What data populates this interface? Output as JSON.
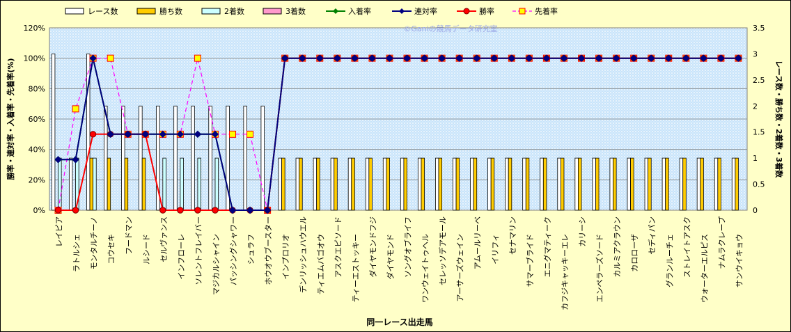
{
  "chart_data": {
    "type": "bar",
    "watermark": "©Ganiの競馬データ研究室",
    "xlabel": "同一レース出走馬",
    "ylabel_left": "勝率・連対率・入着率・先着率(%)",
    "ylabel_right": "レース数・勝ち数・2着数・3着数",
    "ylim_left": [
      0,
      120
    ],
    "ylim_right": [
      0,
      3.5
    ],
    "left_ticks": [
      "0%",
      "20%",
      "40%",
      "60%",
      "80%",
      "100%",
      "120%"
    ],
    "right_ticks": [
      "0",
      "0.5",
      "1",
      "1.5",
      "2",
      "2.5",
      "3",
      "3.5"
    ],
    "grid": true,
    "legend_position": "top",
    "categories": [
      "レイピア",
      "ラトルシェ",
      "モンタルチーノ",
      "コウセキ",
      "フードマン",
      "ルシード",
      "セルヴァンス",
      "インフローレ",
      "ソレントフレイバー",
      "マジカルシャイン",
      "パッシングシャワー",
      "シュラフ",
      "ホウオウブースター",
      "インプロリオ",
      "デンリッシュハウエル",
      "ティエムバゴオウ",
      "アスクエピソード",
      "ティーエストッキー",
      "ダイヤモンドフジ",
      "ダイヤモンド",
      "ソングオブライフ",
      "ワンウェイトゥヘル",
      "セレッソデアモール",
      "アーサーズウェイン",
      "アムールリーベ",
      "イリフィ",
      "セナマリン",
      "サマーブライド",
      "エニグマティーク",
      "カフジキャッキーエレ",
      "カリーシ",
      "エンペラーズソード",
      "カルミアクラウン",
      "カロローザ",
      "セディパン",
      "グランルーチェ",
      "ストレイトアスク",
      "ウォーターエルピス",
      "ナムラクレープ",
      "サンウイキョウ"
    ],
    "series": [
      {
        "name": "レース数",
        "kind": "bar",
        "axis": "right",
        "color": "#ffffff",
        "values": [
          3,
          1,
          3,
          2,
          2,
          2,
          2,
          2,
          2,
          2,
          2,
          2,
          2,
          1,
          1,
          1,
          1,
          1,
          1,
          1,
          1,
          1,
          1,
          1,
          1,
          1,
          1,
          1,
          1,
          1,
          1,
          1,
          1,
          1,
          1,
          1,
          1,
          1,
          1,
          1
        ]
      },
      {
        "name": "勝ち数",
        "kind": "bar",
        "axis": "right",
        "color": "#ffcc00",
        "values": [
          0,
          0,
          1,
          1,
          1,
          1,
          0,
          0,
          0,
          0,
          0,
          0,
          0,
          1,
          1,
          1,
          1,
          1,
          1,
          1,
          1,
          1,
          1,
          1,
          1,
          1,
          1,
          1,
          1,
          1,
          1,
          1,
          1,
          1,
          1,
          1,
          1,
          1,
          1,
          1
        ]
      },
      {
        "name": "2着数",
        "kind": "bar",
        "axis": "right",
        "color": "#ccffff",
        "values": [
          1,
          1,
          1,
          0,
          0,
          0,
          1,
          1,
          1,
          1,
          0,
          0,
          0,
          0,
          0,
          0,
          0,
          0,
          0,
          0,
          0,
          0,
          0,
          0,
          0,
          0,
          0,
          0,
          0,
          0,
          0,
          0,
          0,
          0,
          0,
          0,
          0,
          0,
          0,
          0
        ]
      },
      {
        "name": "3着数",
        "kind": "bar",
        "axis": "right",
        "color": "#ff99cc",
        "values": [
          0,
          0,
          0,
          0,
          0,
          0,
          0,
          0,
          0,
          0,
          0,
          0,
          0,
          0,
          0,
          0,
          0,
          0,
          0,
          0,
          0,
          0,
          0,
          0,
          0,
          0,
          0,
          0,
          0,
          0,
          0,
          0,
          0,
          0,
          0,
          0,
          0,
          0,
          0,
          0
        ]
      },
      {
        "name": "入着率",
        "kind": "line",
        "axis": "left",
        "color": "#008000",
        "marker": "diamond",
        "values": [
          33.3,
          33.3,
          100,
          50,
          50,
          50,
          50,
          50,
          50,
          50,
          0,
          0,
          0,
          100,
          100,
          100,
          100,
          100,
          100,
          100,
          100,
          100,
          100,
          100,
          100,
          100,
          100,
          100,
          100,
          100,
          100,
          100,
          100,
          100,
          100,
          100,
          100,
          100,
          100,
          100
        ]
      },
      {
        "name": "連対率",
        "kind": "line",
        "axis": "left",
        "color": "#000080",
        "marker": "diamond",
        "values": [
          33.3,
          33.3,
          100,
          50,
          50,
          50,
          50,
          50,
          50,
          50,
          0,
          0,
          0,
          100,
          100,
          100,
          100,
          100,
          100,
          100,
          100,
          100,
          100,
          100,
          100,
          100,
          100,
          100,
          100,
          100,
          100,
          100,
          100,
          100,
          100,
          100,
          100,
          100,
          100,
          100
        ]
      },
      {
        "name": "勝率",
        "kind": "line",
        "axis": "left",
        "color": "#ff0000",
        "marker": "circle",
        "values": [
          0,
          0,
          50,
          50,
          50,
          50,
          0,
          0,
          0,
          0,
          0,
          0,
          0,
          100,
          100,
          100,
          100,
          100,
          100,
          100,
          100,
          100,
          100,
          100,
          100,
          100,
          100,
          100,
          100,
          100,
          100,
          100,
          100,
          100,
          100,
          100,
          100,
          100,
          100,
          100
        ]
      },
      {
        "name": "先着率",
        "kind": "dashed",
        "axis": "left",
        "color": "#ff00ff",
        "marker": "square",
        "values": [
          0,
          66.7,
          100,
          100,
          50,
          50,
          50,
          50,
          100,
          50,
          50,
          50,
          0,
          100,
          100,
          100,
          100,
          100,
          100,
          100,
          100,
          100,
          100,
          100,
          100,
          100,
          100,
          100,
          100,
          100,
          100,
          100,
          100,
          100,
          100,
          100,
          100,
          100,
          100,
          100
        ]
      }
    ]
  }
}
